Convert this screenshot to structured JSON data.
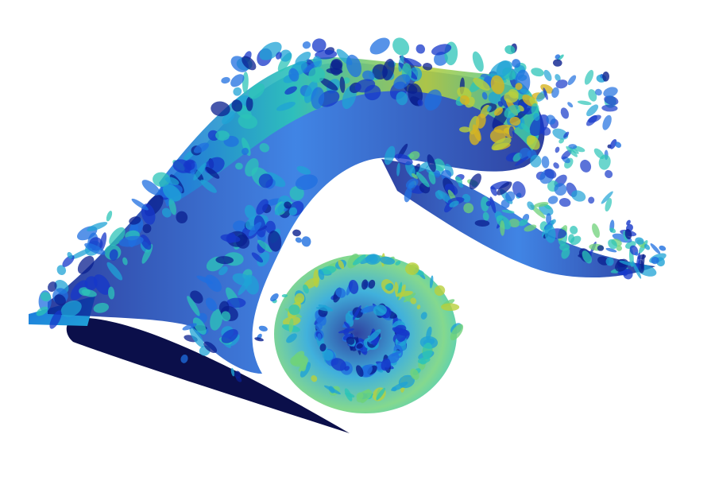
{
  "scene": {
    "subject": "airfoil-vortex-wake",
    "background": "#ffffff",
    "airfoil_color": "#0b0f4a",
    "palette": [
      "#0a1f8f",
      "#1537c9",
      "#1f6fe0",
      "#1fa3d6",
      "#2cc4b8",
      "#6fd27a",
      "#b9cf3c",
      "#d6b422"
    ]
  }
}
